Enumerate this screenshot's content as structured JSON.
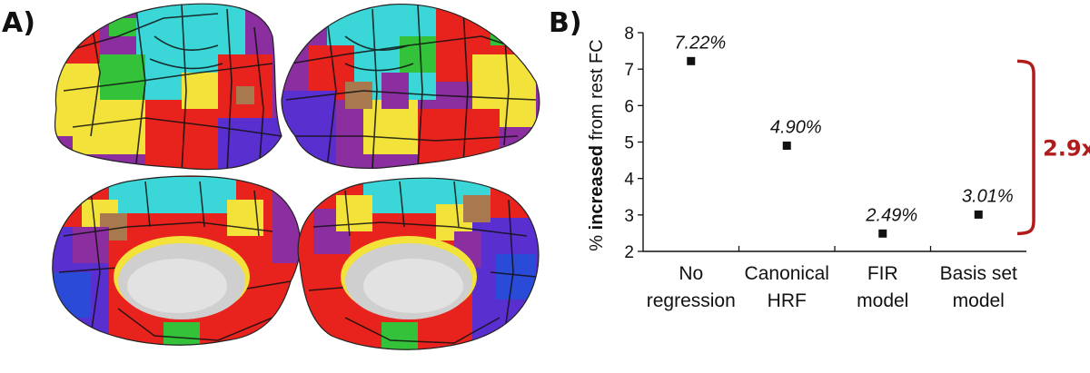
{
  "panels": {
    "a_label": "A)",
    "b_label": "B)"
  },
  "colors": {
    "marker": "#111111",
    "bracket": "#b01c1c",
    "parcel_palette": [
      "#e8231e",
      "#f2e23a",
      "#3ad6d8",
      "#8b2ea0",
      "#33c23a",
      "#5a2fd0",
      "#a8784f",
      "#c9c9c9"
    ]
  },
  "chart_data": {
    "type": "scatter",
    "title": "",
    "xlabel": "",
    "ylabel_prefix": "% ",
    "ylabel_bold": "increased",
    "ylabel_suffix": " from rest FC",
    "ylim": [
      2,
      8
    ],
    "yticks": [
      "2",
      "3",
      "4",
      "5",
      "6",
      "7",
      "8"
    ],
    "categories": [
      [
        "No",
        "regression"
      ],
      [
        "Canonical",
        "HRF"
      ],
      [
        "FIR",
        "model"
      ],
      [
        "Basis set",
        "model"
      ]
    ],
    "values": [
      7.22,
      4.9,
      2.49,
      3.01
    ],
    "data_labels": [
      "7.22%",
      "4.90%",
      "2.49%",
      "3.01%"
    ],
    "grid": false,
    "legend": "none",
    "annotation": {
      "text": "2.9x",
      "from_value": 7.22,
      "to_value": 2.49
    }
  }
}
